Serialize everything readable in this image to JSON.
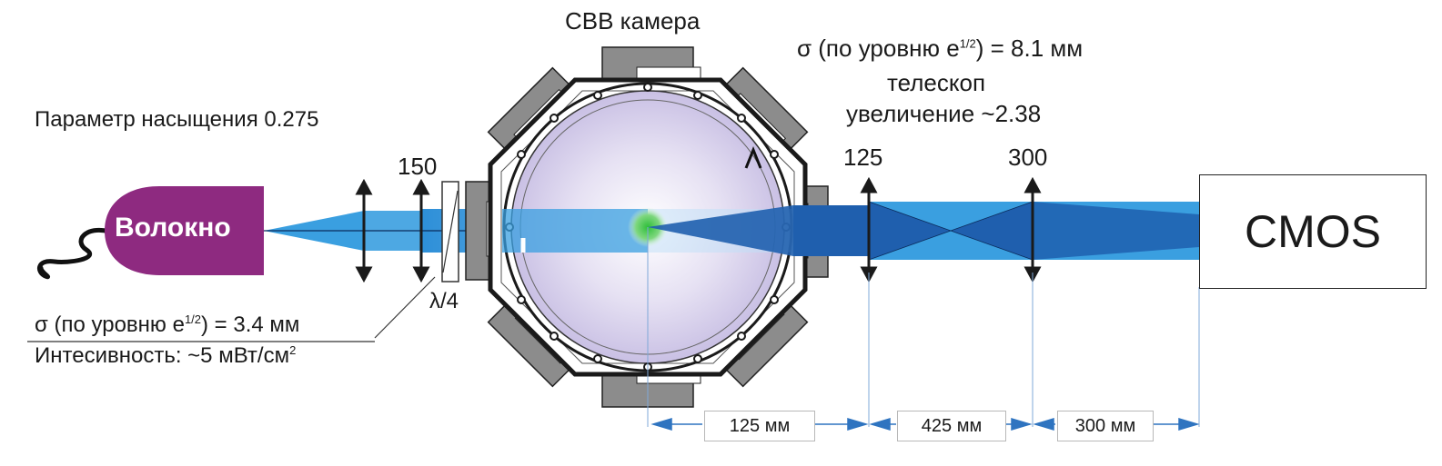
{
  "labels": {
    "chamber_title": "СВВ камера",
    "sigma_right_prefix": "σ (по уровню e",
    "sigma_right_sup": "1/2",
    "sigma_right_suffix": ") = 8.1 мм",
    "telescope_line1": "телескоп",
    "telescope_line2": "увеличение ~2.38",
    "saturation": "Параметр насыщения 0.275",
    "lens_150": "150",
    "lens_125": "125",
    "lens_300": "300",
    "fiber": "Волокно",
    "cmos": "CMOS",
    "quarter_wave": "λ/4",
    "sigma_left_prefix": "σ (по уровню e",
    "sigma_left_sup": "1/2",
    "sigma_left_suffix": ") = 3.4 мм",
    "intensity": "Интесивность:  ~5 мВт/см",
    "intensity_sup": "2"
  },
  "dimensions": [
    {
      "label": "125 мм"
    },
    {
      "label": "425 мм"
    },
    {
      "label": "300 мм"
    }
  ],
  "colors": {
    "fiber": "#8e2a80",
    "beam_light": "#3a9fe0",
    "beam_dark": "#1f5fae",
    "chamber_fill": "#d8d2ec",
    "port_gray": "#8c8c8c",
    "cloud": "#3fbf3f",
    "arrow_blue": "#2f74c0"
  }
}
